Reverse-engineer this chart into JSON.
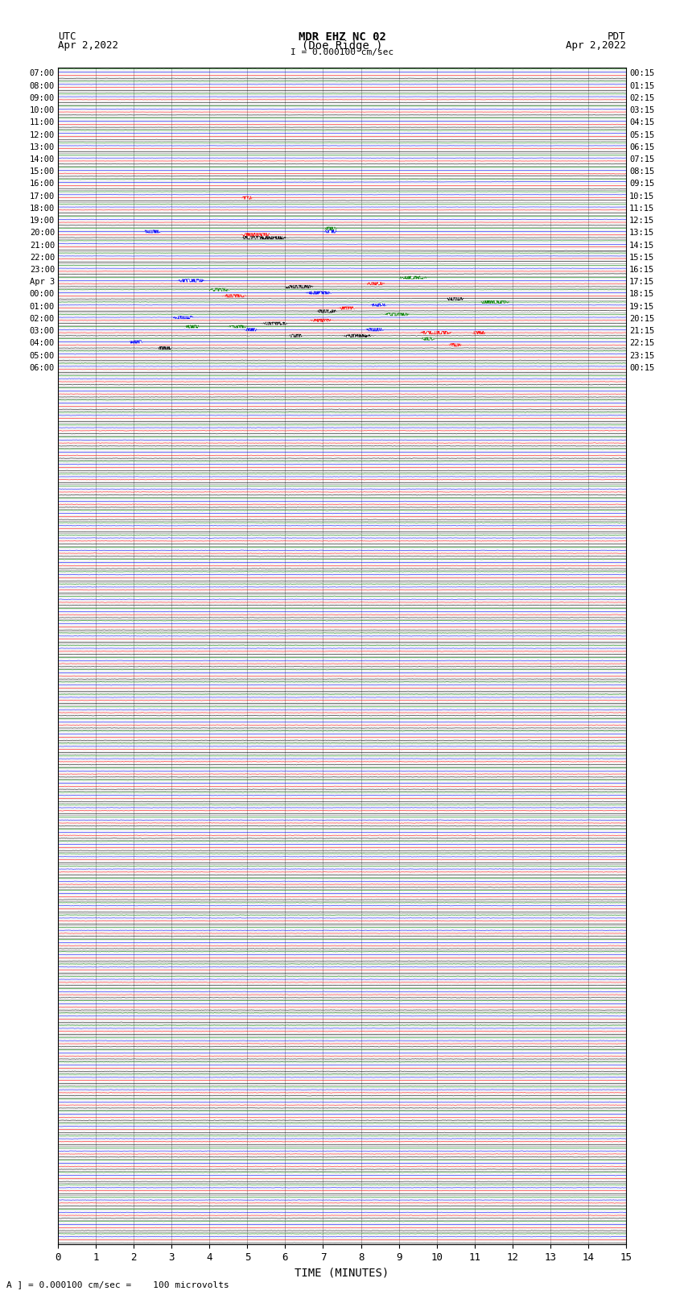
{
  "title_line1": "MDR EHZ NC 02",
  "title_line2": "(Doe Ridge )",
  "scale_text": "I = 0.000100 cm/sec",
  "left_label": "UTC",
  "left_date": "Apr 2,2022",
  "right_label": "PDT",
  "right_date": "Apr 2,2022",
  "bottom_label": "TIME (MINUTES)",
  "caption": "A ] = 0.000100 cm/sec =    100 microvolts",
  "xlim": [
    0,
    15
  ],
  "xticks": [
    0,
    1,
    2,
    3,
    4,
    5,
    6,
    7,
    8,
    9,
    10,
    11,
    12,
    13,
    14,
    15
  ],
  "figsize": [
    8.5,
    16.13
  ],
  "dpi": 100,
  "bg_color": "#ffffff",
  "grid_color": "#999999",
  "trace_colors": [
    "black",
    "red",
    "blue",
    "green"
  ],
  "utc_rows": [
    "07:00",
    "08:00",
    "09:00",
    "10:00",
    "11:00",
    "12:00",
    "13:00",
    "14:00",
    "15:00",
    "16:00",
    "17:00",
    "18:00",
    "19:00",
    "20:00",
    "21:00",
    "22:00",
    "23:00",
    "Apr 3",
    "00:00",
    "01:00",
    "02:00",
    "03:00",
    "04:00",
    "05:00",
    "06:00"
  ],
  "pdt_labels": [
    "00:15",
    "01:15",
    "02:15",
    "03:15",
    "04:15",
    "05:15",
    "06:15",
    "07:15",
    "08:15",
    "09:15",
    "10:15",
    "11:15",
    "12:15",
    "13:15",
    "14:15",
    "15:15",
    "16:15",
    "17:15",
    "18:15",
    "19:15",
    "20:15",
    "21:15",
    "22:15",
    "23:15",
    "00:15"
  ],
  "n_rows": 96,
  "seed": 42
}
